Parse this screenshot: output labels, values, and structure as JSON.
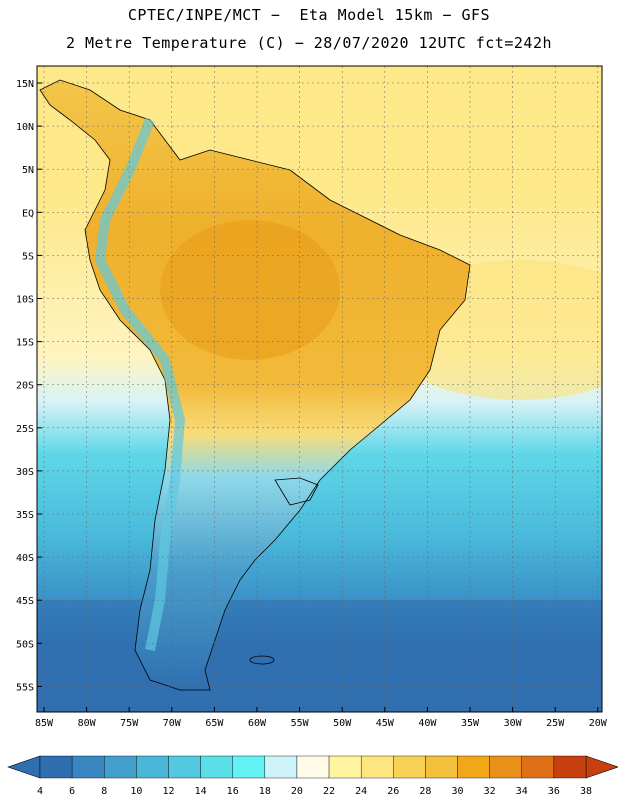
{
  "header": {
    "line1": "CPTEC/INPE/MCT −  Eta Model 15km − GFS",
    "line2": "2 Metre Temperature (C) − 28/07/2020 12UTC fct=242h"
  },
  "map": {
    "lat_labels": [
      "15N",
      "10N",
      "5N",
      "EQ",
      "5S",
      "10S",
      "15S",
      "20S",
      "25S",
      "30S",
      "35S",
      "40S",
      "45S",
      "50S",
      "55S"
    ],
    "lon_labels": [
      "85W",
      "80W",
      "75W",
      "70W",
      "65W",
      "60W",
      "55W",
      "50W",
      "45W",
      "40W",
      "35W",
      "30W",
      "25W",
      "20W"
    ],
    "region": "South America"
  },
  "colorbar": {
    "labels": [
      "4",
      "6",
      "8",
      "10",
      "12",
      "14",
      "16",
      "18",
      "20",
      "22",
      "24",
      "26",
      "28",
      "30",
      "32",
      "34",
      "36",
      "38"
    ],
    "colors": [
      "#2f6fb0",
      "#3a86c0",
      "#43a0cc",
      "#4bb7d8",
      "#52c9e0",
      "#5adfe8",
      "#63f3f5",
      "#cdf2f8",
      "#fffbe8",
      "#fff5a0",
      "#fde680",
      "#f8d256",
      "#f2c03a",
      "#f0a818",
      "#e8901a",
      "#e07018",
      "#c84010"
    ]
  }
}
